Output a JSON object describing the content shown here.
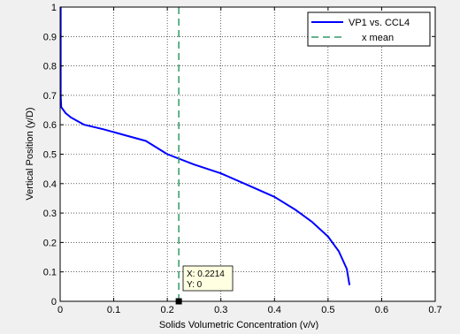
{
  "chart_data": {
    "type": "line",
    "title": "",
    "xlabel": "Solids Volumetric Concentration (v/v)",
    "ylabel": "Vertical Position (y/D)",
    "xlim": [
      0,
      0.7
    ],
    "ylim": [
      0,
      1
    ],
    "x_ticks": [
      0,
      0.1,
      0.2,
      0.3,
      0.4,
      0.5,
      0.6,
      0.7
    ],
    "x_tick_labels": [
      "0",
      "0.1",
      "0.2",
      "0.3",
      "0.4",
      "0.5",
      "0.6",
      "0.7"
    ],
    "y_ticks": [
      0,
      0.1,
      0.2,
      0.3,
      0.4,
      0.5,
      0.6,
      0.7,
      0.8,
      0.9,
      1
    ],
    "y_tick_labels": [
      "0",
      "0.1",
      "0.2",
      "0.3",
      "0.4",
      "0.5",
      "0.6",
      "0.7",
      "0.8",
      "0.9",
      "1"
    ],
    "grid": true,
    "legend_position": "top-right",
    "series": [
      {
        "name": "VP1 vs. CCL4",
        "color": "#0000ff",
        "style": "solid",
        "points": [
          [
            0.001,
            1.0
          ],
          [
            0.001,
            0.7
          ],
          [
            0.002,
            0.66
          ],
          [
            0.01,
            0.64
          ],
          [
            0.02,
            0.625
          ],
          [
            0.045,
            0.6
          ],
          [
            0.08,
            0.585
          ],
          [
            0.12,
            0.565
          ],
          [
            0.16,
            0.545
          ],
          [
            0.2,
            0.5
          ],
          [
            0.25,
            0.465
          ],
          [
            0.3,
            0.435
          ],
          [
            0.35,
            0.395
          ],
          [
            0.4,
            0.355
          ],
          [
            0.44,
            0.31
          ],
          [
            0.47,
            0.27
          ],
          [
            0.5,
            0.22
          ],
          [
            0.52,
            0.17
          ],
          [
            0.535,
            0.11
          ],
          [
            0.54,
            0.055
          ]
        ]
      },
      {
        "name": "x mean",
        "color": "#339966",
        "style": "dashed",
        "points": [
          [
            0.2214,
            0
          ],
          [
            0.2214,
            1
          ]
        ]
      }
    ],
    "datatip": {
      "x_text": "X: 0.2214",
      "y_text": "Y: 0",
      "x": 0.2214,
      "y": 0
    }
  }
}
